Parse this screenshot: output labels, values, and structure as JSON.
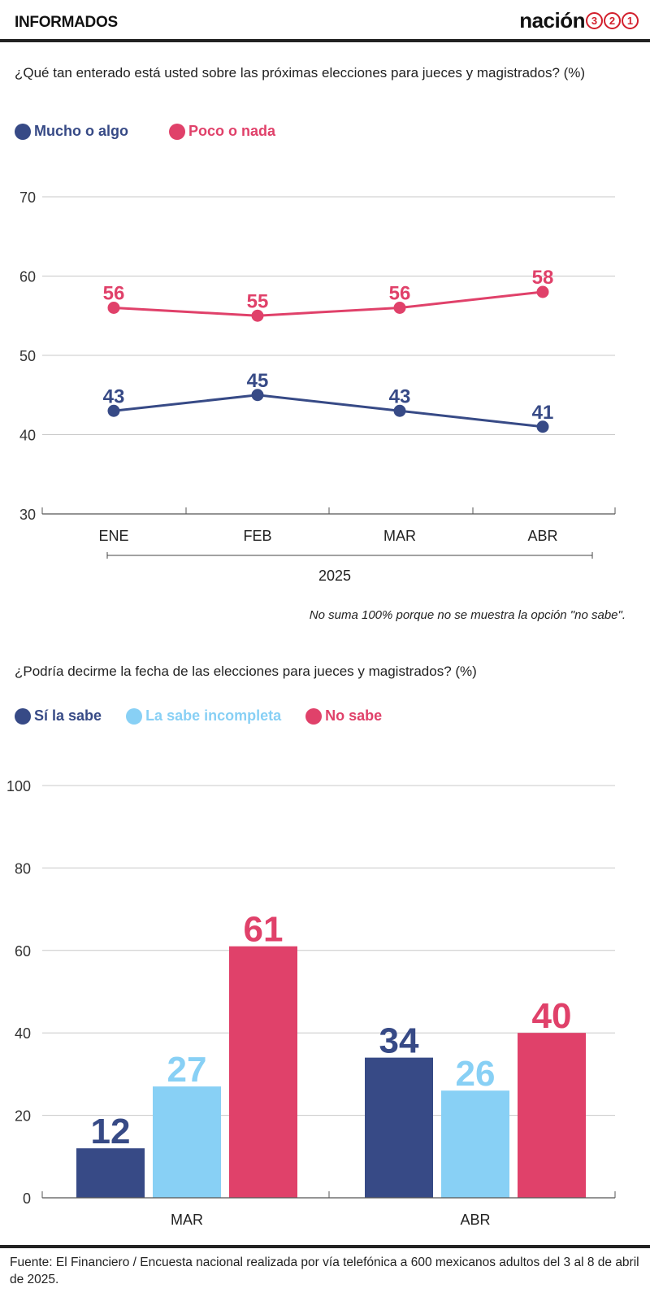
{
  "header": {
    "title": "INFORMADOS",
    "brand_word": "nación",
    "brand_digits": [
      "3",
      "2",
      "1"
    ]
  },
  "colors": {
    "navy": "#374a86",
    "pink": "#e0416a",
    "light_blue": "#88d0f5",
    "grid": "#c8c8c8",
    "axis": "#555555"
  },
  "chart1": {
    "question": "¿Qué tan enterado está usted sobre las próximas  elecciones para jueces y magistrados? (%)",
    "legend": [
      {
        "label": "Mucho o algo",
        "color": "#374a86"
      },
      {
        "label": "Poco o nada",
        "color": "#e0416a"
      }
    ],
    "note": "No suma 100% porque no se muestra la opción \"no sabe\"."
  },
  "chart2": {
    "question": "¿Podría decirme la fecha de las elecciones para jueces  y magistrados? (%)",
    "legend": [
      {
        "label": "Sí la sabe",
        "color": "#374a86"
      },
      {
        "label": "La sabe incompleta",
        "color": "#88d0f5"
      },
      {
        "label": "No sabe",
        "color": "#e0416a"
      }
    ]
  },
  "chart_data": [
    {
      "type": "line",
      "categories": [
        "ENE",
        "FEB",
        "MAR",
        "ABR"
      ],
      "group_label": "2025",
      "series": [
        {
          "name": "Mucho o algo",
          "color": "#374a86",
          "values": [
            43,
            45,
            43,
            41
          ]
        },
        {
          "name": "Poco o nada",
          "color": "#e0416a",
          "values": [
            56,
            55,
            56,
            58
          ]
        }
      ],
      "ylim": [
        30,
        70
      ],
      "yticks": [
        30,
        40,
        50,
        60,
        70
      ],
      "grid": true
    },
    {
      "type": "bar",
      "categories": [
        "MAR",
        "ABR"
      ],
      "series": [
        {
          "name": "Sí la sabe",
          "color": "#374a86",
          "values": [
            12,
            34
          ]
        },
        {
          "name": "La sabe incompleta",
          "color": "#88d0f5",
          "values": [
            27,
            26
          ]
        },
        {
          "name": "No sabe",
          "color": "#e0416a",
          "values": [
            61,
            40
          ]
        }
      ],
      "ylim": [
        0,
        100
      ],
      "yticks": [
        0,
        20,
        40,
        60,
        80,
        100
      ],
      "grid": true
    }
  ],
  "footer": {
    "source": "Fuente: El Financiero / Encuesta nacional realizada por vía telefónica a 600 mexicanos adultos del 3 al 8 de abril de 2025."
  }
}
